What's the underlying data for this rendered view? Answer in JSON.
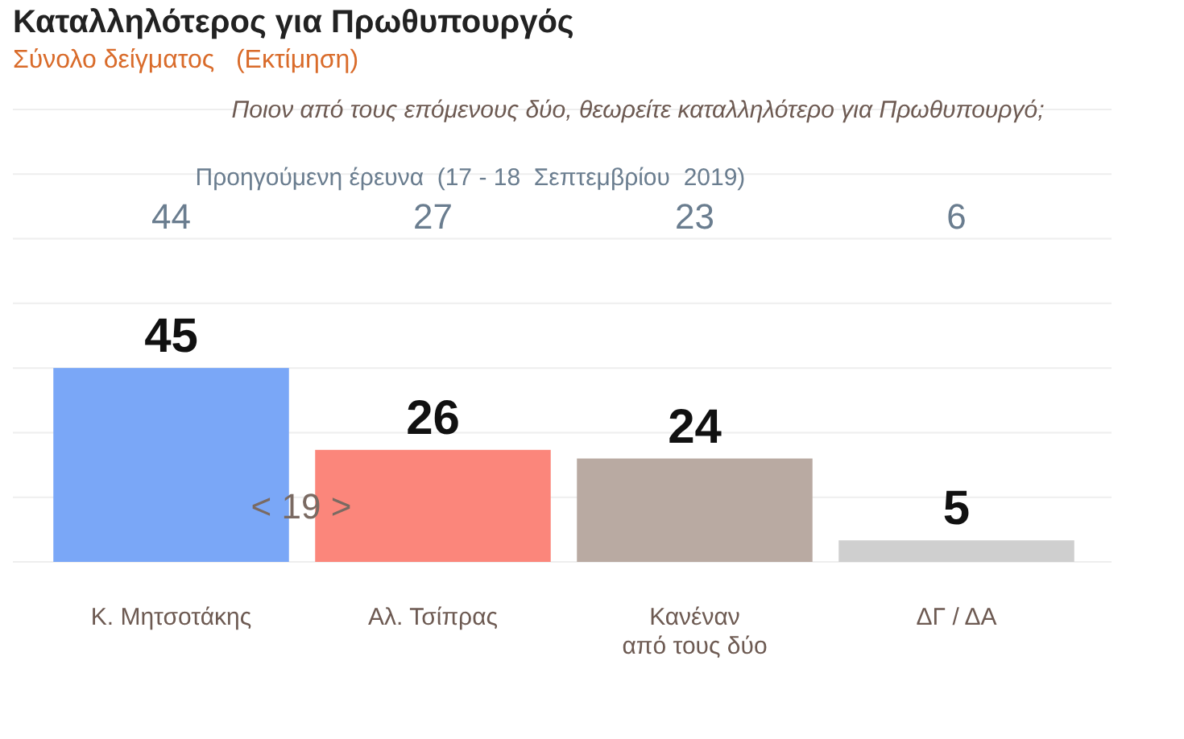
{
  "chart_data": {
    "type": "bar",
    "title": "Καταλληλότερος για Πρωθυπουργός",
    "subtitle": "Σύνολο δείγματος   (Εκτίμηση)",
    "categories": [
      "Κ. Μητσοτάκης",
      "Αλ. Τσίπρας",
      "Κανέναν\nαπό τους δύο",
      "ΔΓ / ΔΑ"
    ],
    "values": [
      45,
      26,
      24,
      5
    ],
    "colors": [
      "#7aa7f7",
      "#fb867b",
      "#b9aaa2",
      "#cfcfcf"
    ],
    "data_labels": true,
    "ylim": [
      0,
      105
    ],
    "yticks": [
      {
        "value": 0,
        "label": null
      },
      {
        "value": 15,
        "label": null
      },
      {
        "value": 30,
        "label": null
      },
      {
        "value": 45,
        "label": null
      },
      {
        "value": 60,
        "label": null
      },
      {
        "value": 75,
        "label": null
      },
      {
        "value": 90,
        "label": null
      },
      {
        "value": 105,
        "label": null
      }
    ],
    "tick_labels": "x",
    "grid": "y",
    "annotations": [
      "Ποιον από τους επόμενους δύο, θεωρείτε καταλληλότερο για Πρωθυπουργό;",
      "Προηγούμενη έρευνα  (17 - 18  Σεπτεμβρίου  2019)",
      "< 19 >",
      "44",
      "27",
      "23",
      "6"
    ]
  }
}
